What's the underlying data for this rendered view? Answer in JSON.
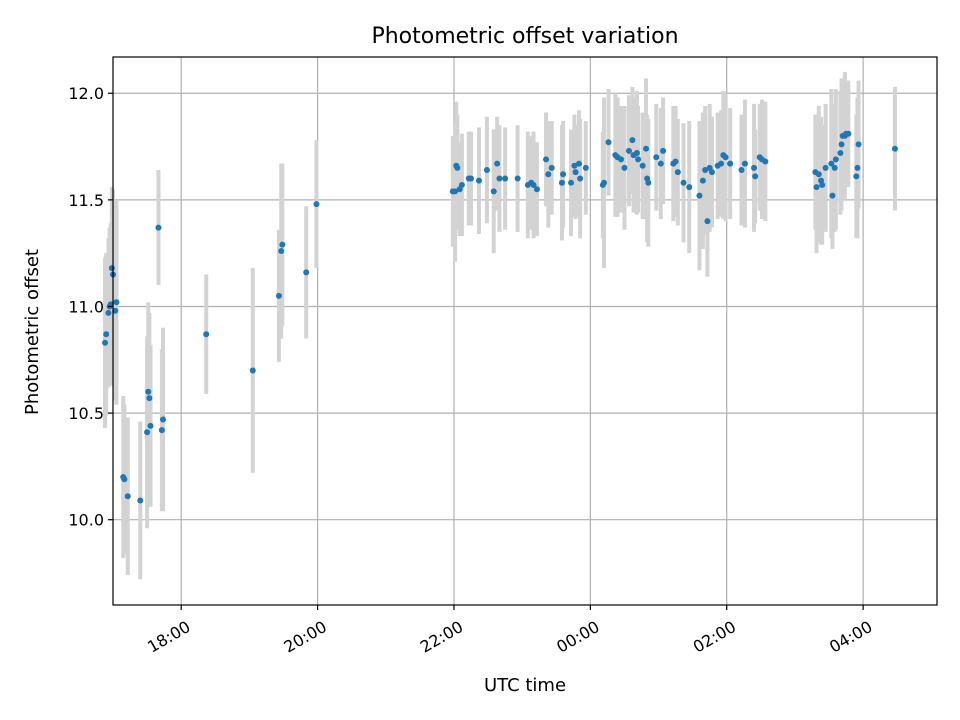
{
  "chart_data": {
    "type": "scatter",
    "title": "Photometric offset variation",
    "xlabel": "UTC time",
    "ylabel": "Photometric offset",
    "x_axis": {
      "kind": "time",
      "start": "17:00",
      "end": "05:05",
      "ticks": [
        "18:00",
        "20:00",
        "22:00",
        "00:00",
        "02:00",
        "04:00"
      ]
    },
    "ylim": [
      9.6,
      12.17
    ],
    "yticks": [
      "10.0",
      "10.5",
      "11.0",
      "11.5",
      "12.0"
    ],
    "grid": true,
    "colors": {
      "point": "#1f77b4",
      "errorbar": "#d3d3d3"
    },
    "series": [
      {
        "points": [
          {
            "t": "16:53",
            "y": 10.83,
            "err": 0.4
          },
          {
            "t": "16:54",
            "y": 10.87,
            "err": 0.38
          },
          {
            "t": "16:56",
            "y": 10.97,
            "err": 0.35
          },
          {
            "t": "16:57",
            "y": 11.0,
            "err": 0.37
          },
          {
            "t": "16:58",
            "y": 11.01,
            "err": 0.38
          },
          {
            "t": "16:59",
            "y": 11.18,
            "err": 0.38
          },
          {
            "t": "17:00",
            "y": 11.15,
            "err": 0.4
          },
          {
            "t": "17:02",
            "y": 10.98,
            "err": 0.42
          },
          {
            "t": "17:03",
            "y": 11.02,
            "err": 0.48
          },
          {
            "t": "17:09",
            "y": 10.2,
            "err": 0.38
          },
          {
            "t": "17:10",
            "y": 10.19,
            "err": 0.35
          },
          {
            "t": "17:13",
            "y": 10.11,
            "err": 0.37
          },
          {
            "t": "17:24",
            "y": 10.09,
            "err": 0.37
          },
          {
            "t": "17:30",
            "y": 10.41,
            "err": 0.45
          },
          {
            "t": "17:31",
            "y": 10.6,
            "err": 0.42
          },
          {
            "t": "17:32",
            "y": 10.57,
            "err": 0.4
          },
          {
            "t": "17:33",
            "y": 10.44,
            "err": 0.38
          },
          {
            "t": "17:40",
            "y": 11.37,
            "err": 0.27
          },
          {
            "t": "17:43",
            "y": 10.42,
            "err": 0.38
          },
          {
            "t": "17:44",
            "y": 10.47,
            "err": 0.43
          },
          {
            "t": "18:22",
            "y": 10.87,
            "err": 0.28
          },
          {
            "t": "19:03",
            "y": 10.7,
            "err": 0.48
          },
          {
            "t": "19:26",
            "y": 11.05,
            "err": 0.31
          },
          {
            "t": "19:28",
            "y": 11.26,
            "err": 0.41
          },
          {
            "t": "19:29",
            "y": 11.29,
            "err": 0.38
          },
          {
            "t": "19:50",
            "y": 11.16,
            "err": 0.31
          },
          {
            "t": "19:59",
            "y": 11.48,
            "err": 0.3
          },
          {
            "t": "21:59",
            "y": 11.54,
            "err": 0.26
          },
          {
            "t": "22:01",
            "y": 11.54,
            "err": 0.33
          },
          {
            "t": "22:02",
            "y": 11.66,
            "err": 0.3
          },
          {
            "t": "22:03",
            "y": 11.65,
            "err": 0.25
          },
          {
            "t": "22:05",
            "y": 11.55,
            "err": 0.22
          },
          {
            "t": "22:07",
            "y": 11.57,
            "err": 0.24
          },
          {
            "t": "22:13",
            "y": 11.6,
            "err": 0.22
          },
          {
            "t": "22:15",
            "y": 11.6,
            "err": 0.22
          },
          {
            "t": "22:22",
            "y": 11.59,
            "err": 0.25
          },
          {
            "t": "22:29",
            "y": 11.64,
            "err": 0.25
          },
          {
            "t": "22:35",
            "y": 11.54,
            "err": 0.29
          },
          {
            "t": "22:38",
            "y": 11.67,
            "err": 0.22
          },
          {
            "t": "22:40",
            "y": 11.6,
            "err": 0.25
          },
          {
            "t": "22:45",
            "y": 11.6,
            "err": 0.24
          },
          {
            "t": "22:56",
            "y": 11.6,
            "err": 0.25
          },
          {
            "t": "23:05",
            "y": 11.57,
            "err": 0.25
          },
          {
            "t": "23:08",
            "y": 11.58,
            "err": 0.22
          },
          {
            "t": "23:10",
            "y": 11.57,
            "err": 0.25
          },
          {
            "t": "23:13",
            "y": 11.55,
            "err": 0.22
          },
          {
            "t": "23:21",
            "y": 11.69,
            "err": 0.22
          },
          {
            "t": "23:23",
            "y": 11.62,
            "err": 0.25
          },
          {
            "t": "23:26",
            "y": 11.65,
            "err": 0.22
          },
          {
            "t": "23:35",
            "y": 11.58,
            "err": 0.27
          },
          {
            "t": "23:36",
            "y": 11.62,
            "err": 0.25
          },
          {
            "t": "23:43",
            "y": 11.58,
            "err": 0.25
          },
          {
            "t": "23:46",
            "y": 11.66,
            "err": 0.24
          },
          {
            "t": "23:47",
            "y": 11.63,
            "err": 0.22
          },
          {
            "t": "23:50",
            "y": 11.67,
            "err": 0.25
          },
          {
            "t": "23:51",
            "y": 11.6,
            "err": 0.28
          },
          {
            "t": "23:56",
            "y": 11.65,
            "err": 0.22
          },
          {
            "t": "00:11",
            "y": 11.57,
            "err": 0.25
          },
          {
            "t": "00:12",
            "y": 11.58,
            "err": 0.4
          },
          {
            "t": "00:16",
            "y": 11.77,
            "err": 0.25
          },
          {
            "t": "00:22",
            "y": 11.71,
            "err": 0.29
          },
          {
            "t": "00:24",
            "y": 11.7,
            "err": 0.28
          },
          {
            "t": "00:27",
            "y": 11.69,
            "err": 0.25
          },
          {
            "t": "00:30",
            "y": 11.65,
            "err": 0.29
          },
          {
            "t": "00:34",
            "y": 11.73,
            "err": 0.26
          },
          {
            "t": "00:37",
            "y": 11.78,
            "err": 0.25
          },
          {
            "t": "00:38",
            "y": 11.71,
            "err": 0.27
          },
          {
            "t": "00:41",
            "y": 11.72,
            "err": 0.29
          },
          {
            "t": "00:42",
            "y": 11.69,
            "err": 0.25
          },
          {
            "t": "00:46",
            "y": 11.66,
            "err": 0.25
          },
          {
            "t": "00:49",
            "y": 11.74,
            "err": 0.33
          },
          {
            "t": "00:50",
            "y": 11.6,
            "err": 0.3
          },
          {
            "t": "00:51",
            "y": 11.58,
            "err": 0.3
          },
          {
            "t": "00:58",
            "y": 11.7,
            "err": 0.25
          },
          {
            "t": "01:02",
            "y": 11.67,
            "err": 0.26
          },
          {
            "t": "01:04",
            "y": 11.73,
            "err": 0.25
          },
          {
            "t": "01:13",
            "y": 11.67,
            "err": 0.27
          },
          {
            "t": "01:15",
            "y": 11.68,
            "err": 0.26
          },
          {
            "t": "01:17",
            "y": 11.63,
            "err": 0.25
          },
          {
            "t": "01:22",
            "y": 11.58,
            "err": 0.28
          },
          {
            "t": "01:27",
            "y": 11.56,
            "err": 0.31
          },
          {
            "t": "01:36",
            "y": 11.52,
            "err": 0.35
          },
          {
            "t": "01:39",
            "y": 11.59,
            "err": 0.32
          },
          {
            "t": "01:41",
            "y": 11.64,
            "err": 0.3
          },
          {
            "t": "01:43",
            "y": 11.4,
            "err": 0.26
          },
          {
            "t": "01:45",
            "y": 11.65,
            "err": 0.3
          },
          {
            "t": "01:47",
            "y": 11.63,
            "err": 0.26
          },
          {
            "t": "01:52",
            "y": 11.66,
            "err": 0.25
          },
          {
            "t": "01:55",
            "y": 11.67,
            "err": 0.25
          },
          {
            "t": "01:57",
            "y": 11.71,
            "err": 0.3
          },
          {
            "t": "01:59",
            "y": 11.7,
            "err": 0.3
          },
          {
            "t": "02:03",
            "y": 11.67,
            "err": 0.26
          },
          {
            "t": "02:13",
            "y": 11.64,
            "err": 0.26
          },
          {
            "t": "02:16",
            "y": 11.67,
            "err": 0.3
          },
          {
            "t": "02:24",
            "y": 11.65,
            "err": 0.3
          },
          {
            "t": "02:25",
            "y": 11.61,
            "err": 0.22
          },
          {
            "t": "02:29",
            "y": 11.7,
            "err": 0.25
          },
          {
            "t": "02:31",
            "y": 11.69,
            "err": 0.28
          },
          {
            "t": "02:34",
            "y": 11.68,
            "err": 0.28
          },
          {
            "t": "03:18",
            "y": 11.63,
            "err": 0.27
          },
          {
            "t": "03:19",
            "y": 11.56,
            "err": 0.31
          },
          {
            "t": "03:21",
            "y": 11.62,
            "err": 0.32
          },
          {
            "t": "03:23",
            "y": 11.59,
            "err": 0.3
          },
          {
            "t": "03:24",
            "y": 11.57,
            "err": 0.28
          },
          {
            "t": "03:27",
            "y": 11.65,
            "err": 0.3
          },
          {
            "t": "03:32",
            "y": 11.67,
            "err": 0.35
          },
          {
            "t": "03:33",
            "y": 11.52,
            "err": 0.25
          },
          {
            "t": "03:35",
            "y": 11.65,
            "err": 0.3
          },
          {
            "t": "03:36",
            "y": 11.69,
            "err": 0.33
          },
          {
            "t": "03:40",
            "y": 11.72,
            "err": 0.29
          },
          {
            "t": "03:41",
            "y": 11.76,
            "err": 0.31
          },
          {
            "t": "03:42",
            "y": 11.8,
            "err": 0.25
          },
          {
            "t": "03:44",
            "y": 11.8,
            "err": 0.3
          },
          {
            "t": "03:45",
            "y": 11.81,
            "err": 0.25
          },
          {
            "t": "03:47",
            "y": 11.81,
            "err": 0.25
          },
          {
            "t": "03:54",
            "y": 11.61,
            "err": 0.29
          },
          {
            "t": "03:55",
            "y": 11.65,
            "err": 0.33
          },
          {
            "t": "03:56",
            "y": 11.76,
            "err": 0.3
          },
          {
            "t": "04:28",
            "y": 11.74,
            "err": 0.29
          }
        ]
      }
    ]
  }
}
